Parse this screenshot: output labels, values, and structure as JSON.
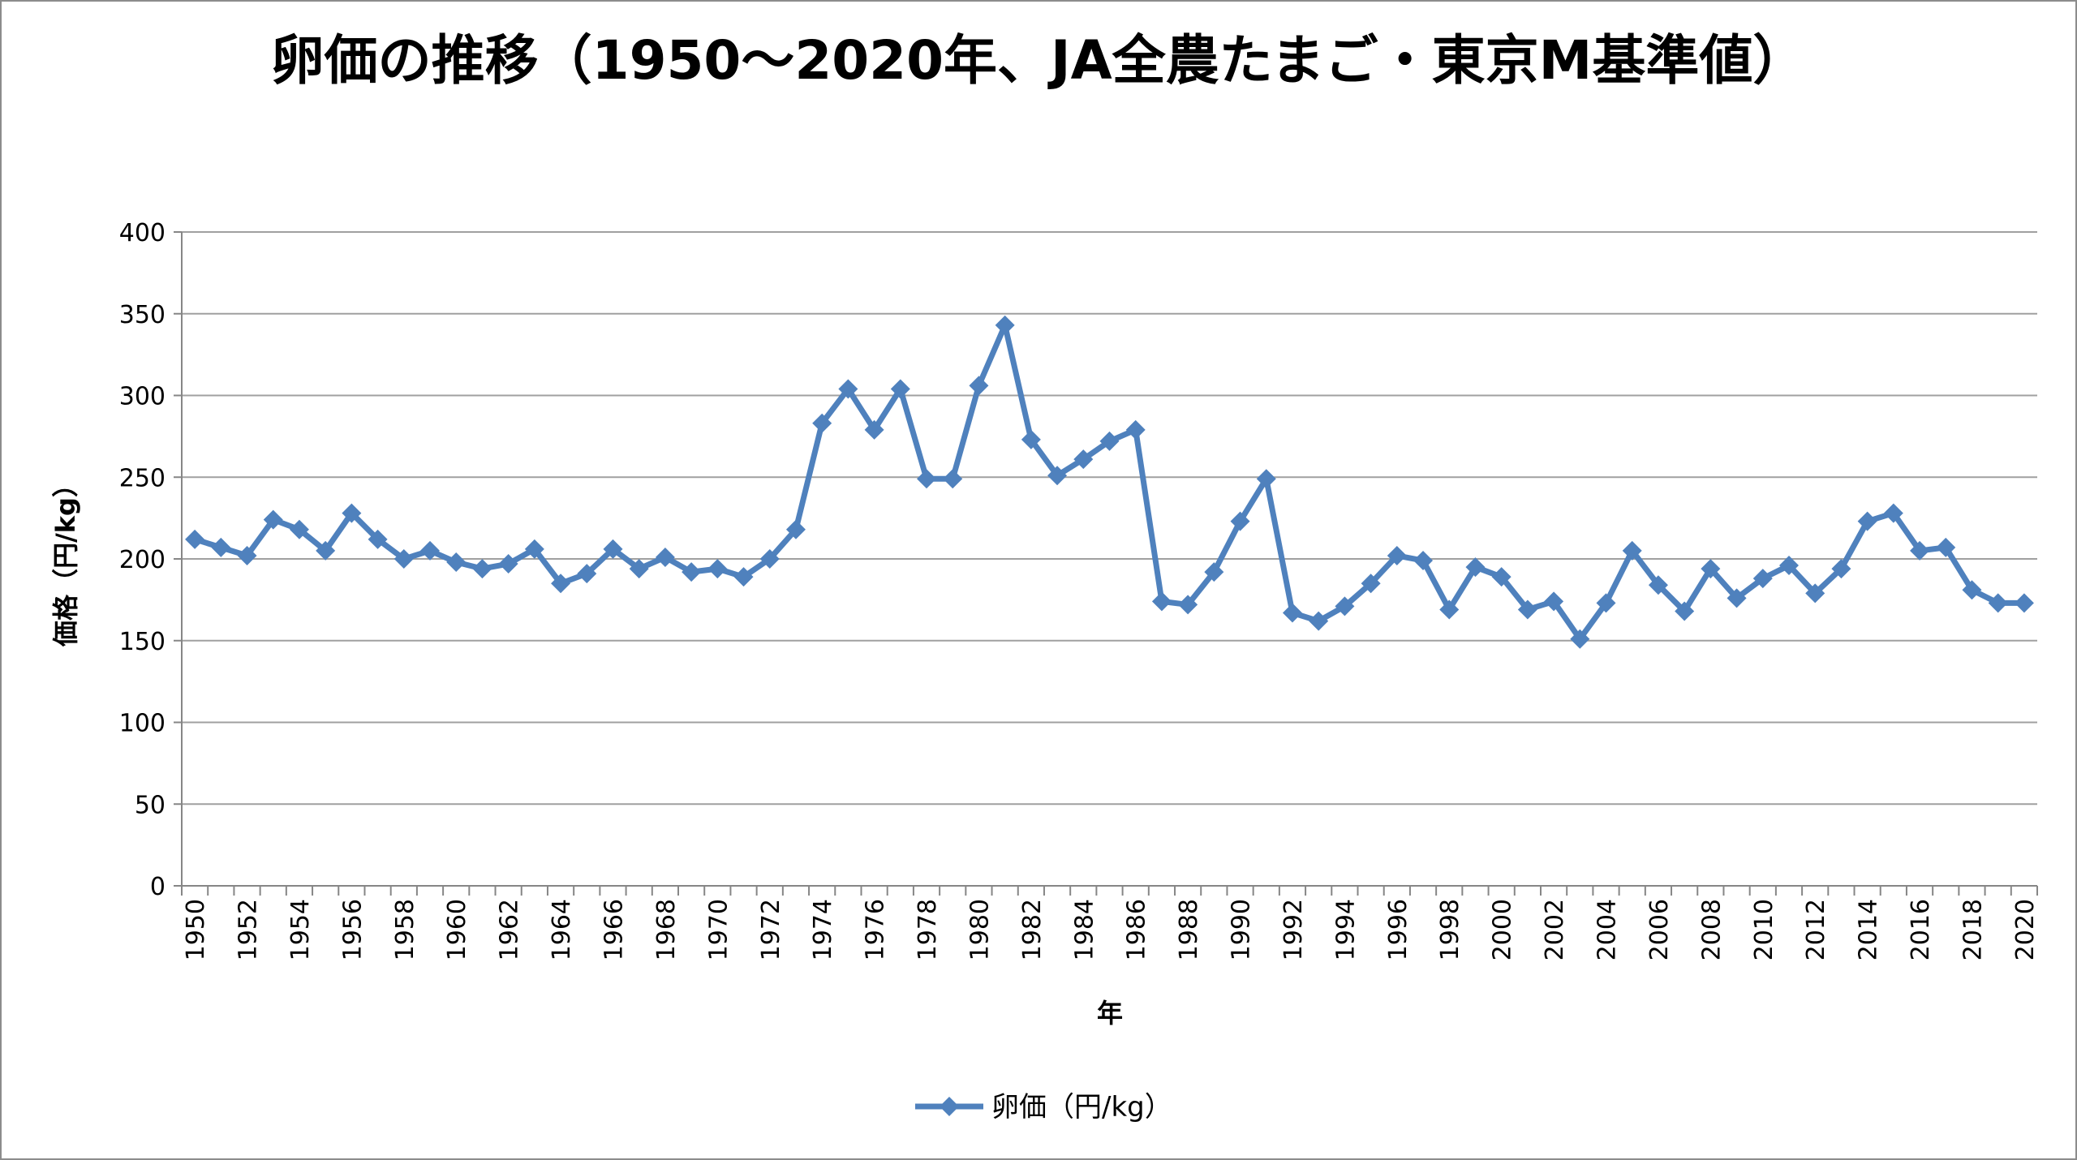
{
  "chart_data": {
    "type": "line",
    "title": "卵価の推移（1950～2020年、JA全農たまご・東京M基準値）",
    "xlabel": "年",
    "ylabel": "価格（円/kg）",
    "ylim": [
      0,
      400
    ],
    "yticks": [
      0,
      50,
      100,
      150,
      200,
      250,
      300,
      350,
      400
    ],
    "grid": true,
    "legend_position": "bottom",
    "x": [
      1950,
      1951,
      1952,
      1953,
      1954,
      1955,
      1956,
      1957,
      1958,
      1959,
      1960,
      1961,
      1962,
      1963,
      1964,
      1965,
      1966,
      1967,
      1968,
      1969,
      1970,
      1971,
      1972,
      1973,
      1974,
      1975,
      1976,
      1977,
      1978,
      1979,
      1980,
      1981,
      1982,
      1983,
      1984,
      1985,
      1986,
      1987,
      1988,
      1989,
      1990,
      1991,
      1992,
      1993,
      1994,
      1995,
      1996,
      1997,
      1998,
      1999,
      2000,
      2001,
      2002,
      2003,
      2004,
      2005,
      2006,
      2007,
      2008,
      2009,
      2010,
      2011,
      2012,
      2013,
      2014,
      2015,
      2016,
      2017,
      2018,
      2019,
      2020
    ],
    "series": [
      {
        "name": "卵価（円/kg）",
        "color": "#4f81bd",
        "values": [
          212,
          207,
          202,
          224,
          218,
          205,
          228,
          212,
          200,
          205,
          198,
          194,
          197,
          206,
          185,
          191,
          206,
          194,
          201,
          192,
          194,
          189,
          200,
          218,
          283,
          304,
          279,
          304,
          249,
          249,
          306,
          343,
          273,
          251,
          261,
          272,
          279,
          174,
          172,
          192,
          223,
          249,
          167,
          162,
          171,
          185,
          202,
          199,
          169,
          195,
          189,
          169,
          174,
          151,
          173,
          205,
          184,
          168,
          194,
          176,
          188,
          196,
          179,
          194,
          223,
          228,
          205,
          207,
          181,
          173,
          173
        ]
      }
    ]
  }
}
